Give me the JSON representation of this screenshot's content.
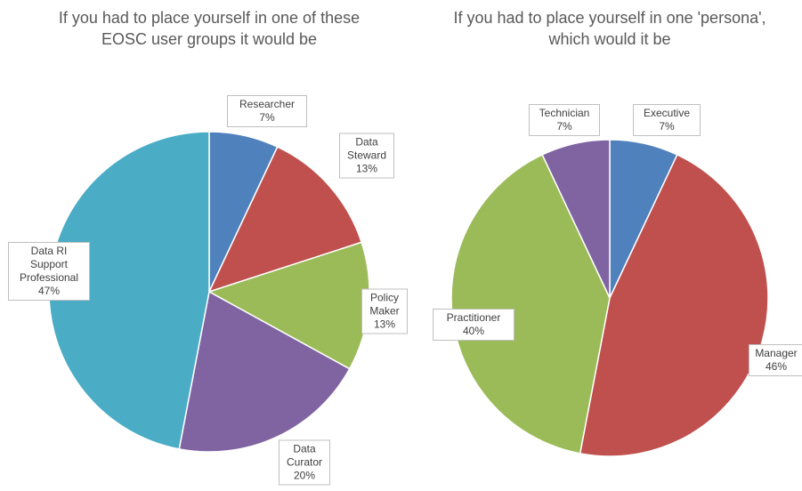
{
  "chart_data": [
    {
      "type": "pie",
      "title": "If you had to place yourself in one of these EOSC user groups it would be",
      "categories": [
        "Researcher",
        "Data Steward",
        "Policy Maker",
        "Data Curator",
        "Data RI Support Professional"
      ],
      "values": [
        7,
        13,
        13,
        20,
        47
      ],
      "value_labels": [
        "7%",
        "13%",
        "13%",
        "20%",
        "47%"
      ],
      "colors": [
        "#4f81bd",
        "#c0504d",
        "#9bbb59",
        "#8064a2",
        "#4bacc6"
      ]
    },
    {
      "type": "pie",
      "title": "If you had to place yourself in one 'persona', which would it be",
      "categories": [
        "Executive",
        "Manager",
        "Practitioner",
        "Technician"
      ],
      "values": [
        7,
        46,
        40,
        7
      ],
      "value_labels": [
        "7%",
        "46%",
        "40%",
        "7%"
      ],
      "colors": [
        "#4f81bd",
        "#c0504d",
        "#9bbb59",
        "#8064a2"
      ]
    }
  ]
}
